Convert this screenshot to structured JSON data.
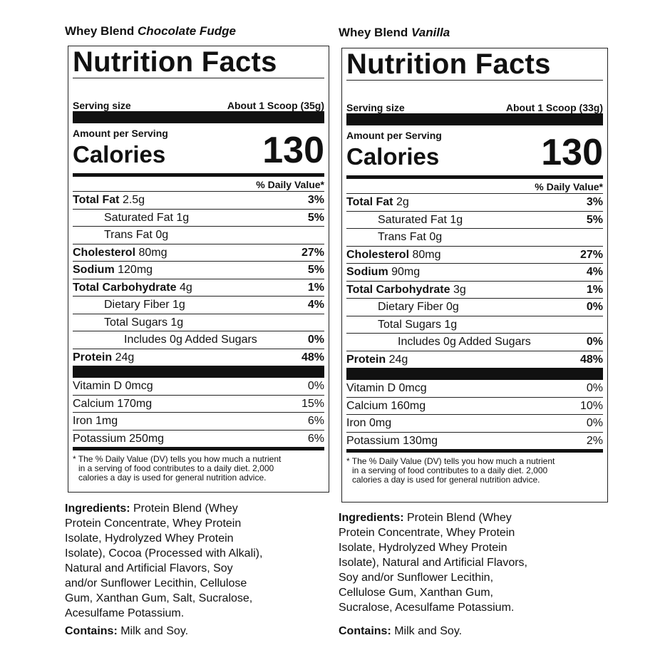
{
  "panels": [
    {
      "product": "Whey Blend",
      "flavor": "Chocolate Fudge",
      "title": "Nutrition Facts",
      "serving_label": "Serving size",
      "serving_value": "About 1 Scoop (35g)",
      "amount_label": "Amount per Serving",
      "calories_label": "Calories",
      "calories_value": "130",
      "dv_header": "% Daily Value*",
      "nutrients": [
        {
          "name": "Total Fat",
          "amount": "2.5g",
          "pct": "3%"
        },
        {
          "name": "Saturated Fat 1g",
          "pct": "5%"
        },
        {
          "name": "Trans Fat 0g",
          "pct": ""
        },
        {
          "name": "Cholesterol",
          "amount": "80mg",
          "pct": "27%"
        },
        {
          "name": "Sodium",
          "amount": "120mg",
          "pct": "5%"
        },
        {
          "name": "Total Carbohydrate",
          "amount": "4g",
          "pct": "1%"
        },
        {
          "name": "Dietary Fiber 1g",
          "pct": "4%"
        },
        {
          "name": "Total Sugars 1g",
          "pct": ""
        },
        {
          "name": "Includes 0g Added Sugars",
          "pct": "0%"
        },
        {
          "name": "Protein",
          "amount": "24g",
          "pct": "48%"
        }
      ],
      "vitamins": [
        {
          "name": "Vitamin D 0mcg",
          "pct": "0%"
        },
        {
          "name": "Calcium 170mg",
          "pct": "15%"
        },
        {
          "name": "Iron 1mg",
          "pct": "6%"
        },
        {
          "name": "Potassium 250mg",
          "pct": "6%"
        }
      ],
      "footnote": [
        "* The % Daily Value (DV) tells you how much a nutrient",
        "in a serving of food contributes to a daily diet. 2,000",
        "calories a  day is used for general nutrition advice."
      ],
      "ingredients_label": "Ingredients:",
      "ingredients_lines": [
        " Protein Blend (Whey",
        "Protein Concentrate, Whey Protein",
        "Isolate, Hydrolyzed Whey Protein",
        "Isolate), Cocoa (Processed with Alkali),",
        "Natural and Artificial Flavors, Soy",
        "and/or Sunflower Lecithin, Cellulose",
        "Gum, Xanthan Gum, Salt, Sucralose,",
        "Acesulfame Potassium."
      ],
      "contains_label": "Contains:",
      "contains_value": " Milk and Soy."
    },
    {
      "product": "Whey Blend",
      "flavor": "Vanilla",
      "title": "Nutrition Facts",
      "serving_label": "Serving size",
      "serving_value": "About 1 Scoop (33g)",
      "amount_label": "Amount per Serving",
      "calories_label": "Calories",
      "calories_value": "130",
      "dv_header": "% Daily Value*",
      "nutrients": [
        {
          "name": "Total Fat",
          "amount": "2g",
          "pct": "3%"
        },
        {
          "name": "Saturated Fat 1g",
          "pct": "5%"
        },
        {
          "name": "Trans Fat 0g",
          "pct": ""
        },
        {
          "name": "Cholesterol",
          "amount": "80mg",
          "pct": "27%"
        },
        {
          "name": "Sodium",
          "amount": "90mg",
          "pct": "4%"
        },
        {
          "name": "Total Carbohydrate",
          "amount": "3g",
          "pct": "1%"
        },
        {
          "name": "Dietary Fiber 0g",
          "pct": "0%"
        },
        {
          "name": "Total Sugars 1g",
          "pct": ""
        },
        {
          "name": "Includes 0g Added Sugars",
          "pct": "0%"
        },
        {
          "name": "Protein",
          "amount": "24g",
          "pct": "48%"
        }
      ],
      "vitamins": [
        {
          "name": "Vitamin D 0mcg",
          "pct": "0%"
        },
        {
          "name": "Calcium 160mg",
          "pct": "10%"
        },
        {
          "name": "Iron 0mg",
          "pct": "0%"
        },
        {
          "name": "Potassium 130mg",
          "pct": "2%"
        }
      ],
      "footnote": [
        "* The % Daily Value (DV) tells you how much a nutrient",
        "in a serving of food contributes to a daily diet. 2,000",
        "calories a  day is used for general nutrition advice."
      ],
      "ingredients_label": "Ingredients:",
      "ingredients_lines": [
        " Protein Blend (Whey",
        "Protein Concentrate, Whey Protein",
        "Isolate, Hydrolyzed Whey Protein",
        "Isolate), Natural and Artificial Flavors,",
        "Soy and/or Sunflower Lecithin,",
        "Cellulose Gum, Xanthan Gum,",
        "Sucralose, Acesulfame Potassium."
      ],
      "contains_label": "Contains:",
      "contains_value": " Milk and Soy."
    }
  ]
}
